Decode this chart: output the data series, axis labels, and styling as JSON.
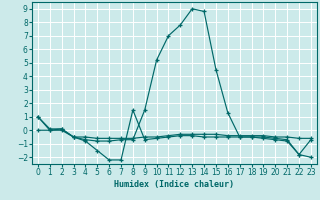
{
  "xlabel": "Humidex (Indice chaleur)",
  "xlim": [
    -0.5,
    23.5
  ],
  "ylim": [
    -2.5,
    9.5
  ],
  "yticks": [
    -2,
    -1,
    0,
    1,
    2,
    3,
    4,
    5,
    6,
    7,
    8,
    9
  ],
  "xticks": [
    0,
    1,
    2,
    3,
    4,
    5,
    6,
    7,
    8,
    9,
    10,
    11,
    12,
    13,
    14,
    15,
    16,
    17,
    18,
    19,
    20,
    21,
    22,
    23
  ],
  "bg_color": "#cceaea",
  "grid_color": "#ffffff",
  "line_color": "#006868",
  "line1_x": [
    0,
    1,
    2,
    3,
    4,
    5,
    6,
    7,
    8,
    9,
    10,
    11,
    12,
    13,
    14,
    15,
    16,
    17,
    18,
    19,
    20,
    21,
    22,
    23
  ],
  "line1_y": [
    1.0,
    0.0,
    0.1,
    -0.5,
    -0.8,
    -1.5,
    -2.2,
    -2.2,
    1.5,
    -0.7,
    -0.6,
    -0.5,
    -0.4,
    -0.4,
    -0.5,
    -0.5,
    -0.5,
    -0.5,
    -0.5,
    -0.6,
    -0.7,
    -0.8,
    -1.8,
    -2.0
  ],
  "line2_x": [
    0,
    1,
    2,
    3,
    4,
    5,
    6,
    7,
    8,
    9,
    10,
    11,
    12,
    13,
    14,
    15,
    16,
    17,
    18,
    19,
    20,
    21,
    22,
    23
  ],
  "line2_y": [
    1.0,
    0.1,
    0.1,
    -0.5,
    -0.7,
    -0.8,
    -0.8,
    -0.7,
    -0.7,
    1.5,
    5.2,
    7.0,
    7.8,
    9.0,
    8.8,
    4.5,
    1.3,
    -0.5,
    -0.5,
    -0.5,
    -0.6,
    -0.7,
    -1.8,
    -0.7
  ],
  "line3_x": [
    0,
    1,
    2,
    3,
    4,
    5,
    6,
    7,
    8,
    9,
    10,
    11,
    12,
    13,
    14,
    15,
    16,
    17,
    18,
    19,
    20,
    21,
    22,
    23
  ],
  "line3_y": [
    0.0,
    0.0,
    0.0,
    -0.5,
    -0.5,
    -0.6,
    -0.6,
    -0.6,
    -0.6,
    -0.5,
    -0.5,
    -0.4,
    -0.3,
    -0.3,
    -0.3,
    -0.3,
    -0.4,
    -0.4,
    -0.4,
    -0.4,
    -0.5,
    -0.5,
    -0.6,
    -0.6
  ]
}
